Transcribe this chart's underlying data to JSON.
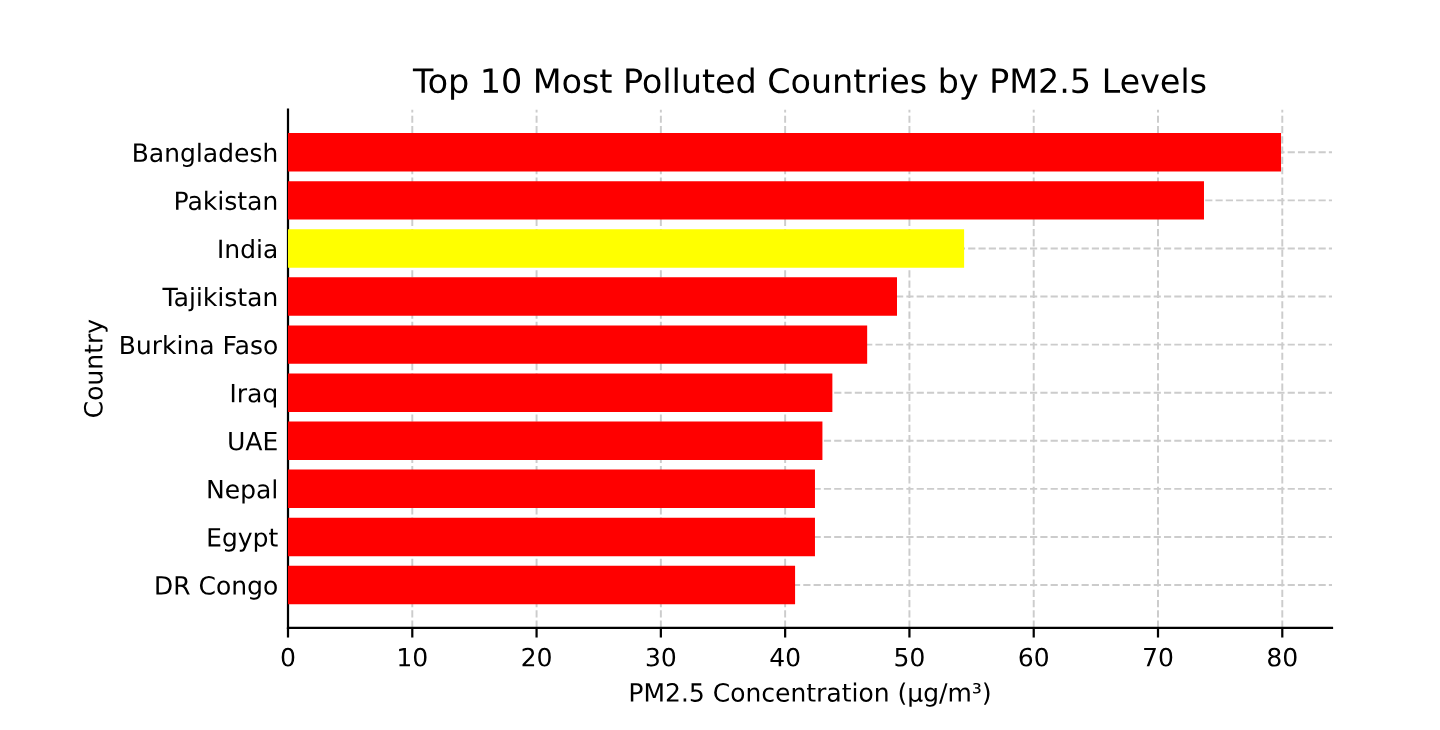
{
  "chart_data": {
    "type": "bar",
    "orientation": "horizontal",
    "title": "Top 10 Most Polluted Countries by PM2.5 Levels",
    "xlabel": "PM2.5 Concentration (μg/m³)",
    "ylabel": "Country",
    "categories": [
      "Bangladesh",
      "Pakistan",
      "India",
      "Tajikistan",
      "Burkina Faso",
      "Iraq",
      "UAE",
      "Nepal",
      "Egypt",
      "DR Congo"
    ],
    "values": [
      79.9,
      73.7,
      54.4,
      49.0,
      46.6,
      43.8,
      43.0,
      42.4,
      42.4,
      40.8
    ],
    "colors": [
      "#ff0000",
      "#ff0000",
      "#ffff00",
      "#ff0000",
      "#ff0000",
      "#ff0000",
      "#ff0000",
      "#ff0000",
      "#ff0000",
      "#ff0000"
    ],
    "xlim": [
      0,
      84
    ],
    "xticks": [
      0,
      10,
      20,
      30,
      40,
      50,
      60,
      70,
      80
    ],
    "grid": true,
    "line_style": "dashed"
  }
}
